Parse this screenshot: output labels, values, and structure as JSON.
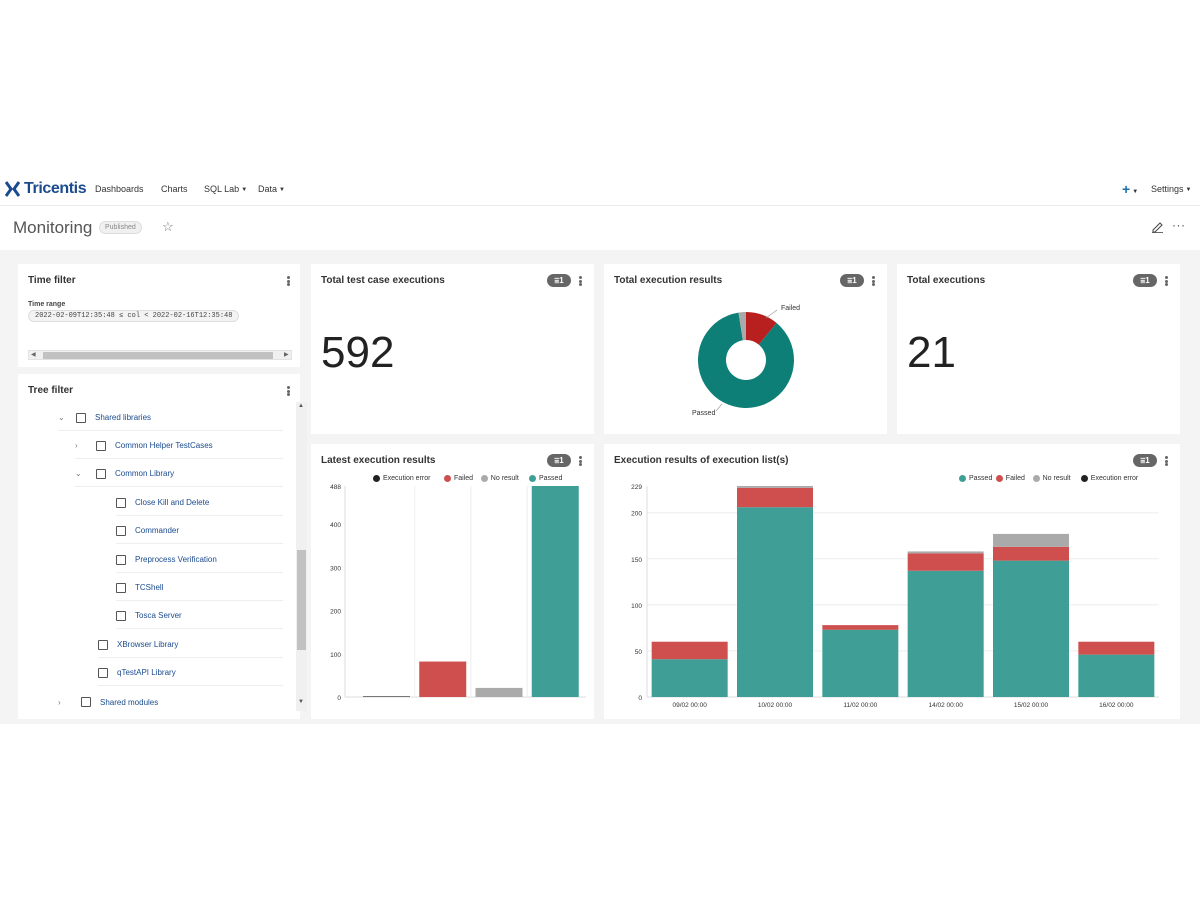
{
  "nav": {
    "brand": "Tricentis",
    "items": [
      "Dashboards",
      "Charts",
      "SQL Lab",
      "Data"
    ],
    "plus": "+",
    "settings": "Settings"
  },
  "header": {
    "title": "Monitoring",
    "status": "Published"
  },
  "time_filter": {
    "title": "Time filter",
    "label": "Time range",
    "value": "2022-02-09T12:35:48 ≤ col < 2022-02-16T12:35:48"
  },
  "tree_filter": {
    "title": "Tree filter",
    "items": [
      {
        "label": "Shared libraries",
        "expanded": true
      },
      {
        "label": "Common Helper TestCases",
        "expanded": false
      },
      {
        "label": "Common Library",
        "expanded": true
      },
      {
        "label": "Close Kill and Delete"
      },
      {
        "label": "Commander"
      },
      {
        "label": "Preprocess Verification"
      },
      {
        "label": "TCShell"
      },
      {
        "label": "Tosca Server"
      },
      {
        "label": "XBrowser Library"
      },
      {
        "label": "qTestAPI Library"
      },
      {
        "label": "Shared modules",
        "expanded": false
      }
    ]
  },
  "kpi_test_cases": {
    "title": "Total test case executions",
    "filters": "1",
    "value": "592"
  },
  "kpi_executions": {
    "title": "Total executions",
    "filters": "1",
    "value": "21"
  },
  "colors": {
    "passed": "#3f9f97",
    "failed": "#cf4f4f",
    "no_result": "#aaaaaa",
    "execution_error": "#222222",
    "donut_passed": "#0d7f77",
    "donut_failed": "#b8201f"
  },
  "chart_data": [
    {
      "type": "pie",
      "title": "Total execution results",
      "filters": "1",
      "variant": "donut",
      "slices": [
        {
          "label": "Passed",
          "value": 86.5
        },
        {
          "label": "Failed",
          "value": 11.0
        },
        {
          "label": "No result",
          "value": 2.5
        }
      ]
    },
    {
      "type": "bar",
      "title": "Latest execution results",
      "filters": "1",
      "legend": [
        "Execution error",
        "Failed",
        "No result",
        "Passed"
      ],
      "categories": [
        "Execution error",
        "Failed",
        "No result",
        "Passed"
      ],
      "values": [
        1,
        82,
        21,
        488
      ],
      "ylim": [
        0,
        488
      ],
      "yticks": [
        0,
        100,
        200,
        300,
        400,
        488
      ]
    },
    {
      "type": "bar",
      "stacked": true,
      "title": "Execution results of execution list(s)",
      "filters": "1",
      "legend": [
        "Passed",
        "Failed",
        "No result",
        "Execution error"
      ],
      "categories": [
        "09/02 00:00",
        "10/02 00:00",
        "11/02 00:00",
        "14/02 00:00",
        "15/02 00:00",
        "16/02 00:00"
      ],
      "series": [
        {
          "name": "Passed",
          "values": [
            41,
            206,
            73,
            137,
            148,
            46
          ]
        },
        {
          "name": "Failed",
          "values": [
            19,
            21,
            5,
            19,
            15,
            14
          ]
        },
        {
          "name": "No result",
          "values": [
            0,
            2,
            0,
            2,
            14,
            0
          ]
        }
      ],
      "ylim": [
        0,
        229
      ],
      "yticks": [
        0,
        50,
        100,
        150,
        200,
        229
      ]
    }
  ]
}
